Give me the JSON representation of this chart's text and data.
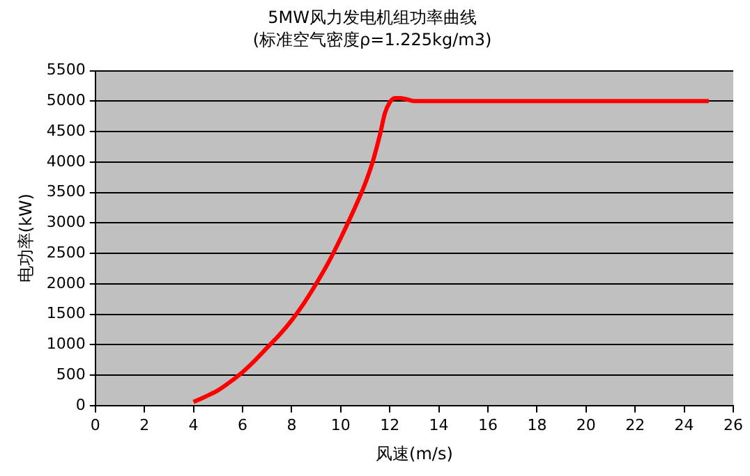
{
  "chart_data": {
    "type": "line",
    "title": "5MW风力发电机组功率曲线",
    "subtitle": "(标准空气密度ρ=1.225kg/m3)",
    "xlabel": "风速(m/s)",
    "ylabel": "电功率(kW)",
    "x": [
      4,
      4.5,
      5,
      5.5,
      6,
      6.5,
      7,
      7.5,
      8,
      8.5,
      9,
      9.5,
      10,
      10.5,
      11,
      11.3,
      11.6,
      11.8,
      12,
      12.2,
      12.4,
      12.7,
      13,
      15,
      20,
      25
    ],
    "series": [
      {
        "color": "#ff0000",
        "values": [
          60,
          150,
          250,
          390,
          550,
          740,
          950,
          1160,
          1400,
          1680,
          2000,
          2350,
          2750,
          3180,
          3650,
          4000,
          4450,
          4800,
          4980,
          5050,
          5050,
          5030,
          5000,
          5000,
          5000,
          5000
        ]
      }
    ],
    "xlim": [
      0,
      26
    ],
    "xticks": [
      0,
      2,
      4,
      6,
      8,
      10,
      12,
      14,
      16,
      18,
      20,
      22,
      24,
      26
    ],
    "ylim": [
      0,
      5500
    ],
    "yticks": [
      0,
      500,
      1000,
      1500,
      2000,
      2500,
      3000,
      3500,
      4000,
      4500,
      5000,
      5500
    ],
    "grid": "y",
    "legend": false,
    "marker": "none",
    "line_style": "solid"
  }
}
